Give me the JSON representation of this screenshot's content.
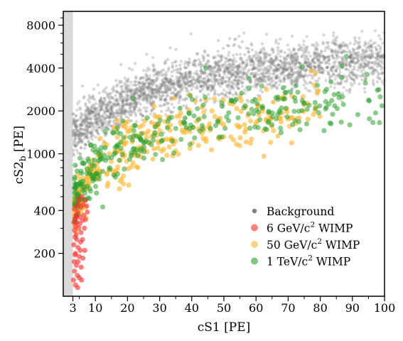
{
  "chart_data": {
    "type": "scatter",
    "title": "",
    "xlabel": "cS1 [PE]",
    "ylabel": "cS2",
    "ylabel_subscript": "b",
    "ylabel_unit": "[PE]",
    "x_scale": "linear",
    "y_scale": "log",
    "xlim": [
      0,
      100
    ],
    "ylim": [
      100,
      10000
    ],
    "x_ticks": [
      3,
      10,
      20,
      30,
      40,
      50,
      60,
      70,
      80,
      90,
      100
    ],
    "x_tick_labels": [
      "3",
      "10",
      "20",
      "30",
      "40",
      "50",
      "60",
      "70",
      "80",
      "90",
      "100"
    ],
    "y_ticks": [
      200,
      400,
      1000,
      2000,
      4000,
      8000
    ],
    "y_tick_labels": [
      "200",
      "400",
      "1000",
      "2000",
      "4000",
      "8000"
    ],
    "excluded_region": {
      "x_from": 0,
      "x_to": 3,
      "color": "#d9d9d9"
    },
    "legend_position": "lower-right",
    "series": [
      {
        "name": "Background",
        "color": "#7f7f7f",
        "band": {
          "x_from": 3,
          "x_to": 100,
          "n_points": 2600,
          "opacity": 0.3,
          "median": [
            [
              3,
              1350
            ],
            [
              10,
              1800
            ],
            [
              20,
              2400
            ],
            [
              30,
              2950
            ],
            [
              40,
              3350
            ],
            [
              50,
              3600
            ],
            [
              60,
              3900
            ],
            [
              70,
              4050
            ],
            [
              80,
              4250
            ],
            [
              90,
              4450
            ],
            [
              100,
              4700
            ]
          ]
        }
      },
      {
        "name": "6 GeV/c² WIMP",
        "color": "#ff2a2a",
        "points": [
          [
            3.2,
            130
          ],
          [
            3.5,
            150
          ],
          [
            3.4,
            175
          ],
          [
            3.8,
            200
          ],
          [
            4.1,
            165
          ],
          [
            4.4,
            140
          ],
          [
            3.3,
            230
          ],
          [
            3.7,
            260
          ],
          [
            4.2,
            250
          ],
          [
            4.6,
            220
          ],
          [
            5.0,
            190
          ],
          [
            5.3,
            210
          ],
          [
            3.5,
            290
          ],
          [
            3.9,
            310
          ],
          [
            4.3,
            330
          ],
          [
            4.8,
            300
          ],
          [
            5.5,
            280
          ],
          [
            3.6,
            350
          ],
          [
            4.0,
            370
          ],
          [
            4.5,
            390
          ],
          [
            5.2,
            360
          ],
          [
            5.9,
            340
          ],
          [
            6.4,
            370
          ],
          [
            3.4,
            410
          ],
          [
            4.1,
            430
          ],
          [
            4.7,
            450
          ],
          [
            5.5,
            420
          ],
          [
            6.2,
            440
          ],
          [
            4.9,
            480
          ],
          [
            5.8,
            500
          ],
          [
            6.8,
            470
          ],
          [
            7.3,
            430
          ],
          [
            5.0,
            135
          ],
          [
            5.6,
            160
          ],
          [
            6.1,
            185
          ],
          [
            6.7,
            210
          ],
          [
            3.8,
            120
          ],
          [
            4.5,
            115
          ],
          [
            6.0,
            250
          ],
          [
            6.6,
            300
          ],
          [
            4.0,
            270
          ],
          [
            5.1,
            320
          ],
          [
            3.7,
            195
          ],
          [
            5.4,
            240
          ],
          [
            3.3,
            330
          ],
          [
            7.5,
            390
          ],
          [
            6.9,
            345
          ],
          [
            4.6,
            175
          ],
          [
            5.7,
            130
          ],
          [
            4.2,
            360
          ]
        ]
      },
      {
        "name": "50 GeV/c² WIMP",
        "color": "#ffb833",
        "n_points": 320,
        "x_from": 3.5,
        "x_to": 80,
        "opacity": 0.65,
        "median": [
          [
            4,
            420
          ],
          [
            10,
            760
          ],
          [
            20,
            1100
          ],
          [
            30,
            1350
          ],
          [
            40,
            1550
          ],
          [
            50,
            1700
          ],
          [
            60,
            1850
          ],
          [
            70,
            1950
          ],
          [
            80,
            2050
          ]
        ]
      },
      {
        "name": "1 TeV/c² WIMP",
        "color": "#2ca02c",
        "n_points": 330,
        "x_from": 3.5,
        "x_to": 100,
        "opacity": 0.55,
        "median": [
          [
            4,
            500
          ],
          [
            10,
            820
          ],
          [
            20,
            1150
          ],
          [
            30,
            1450
          ],
          [
            40,
            1650
          ],
          [
            50,
            1850
          ],
          [
            60,
            2000
          ],
          [
            70,
            2100
          ],
          [
            80,
            2200
          ],
          [
            90,
            2300
          ],
          [
            100,
            2400
          ]
        ]
      }
    ],
    "legend": [
      {
        "label": "Background",
        "color": "#7f7f7f",
        "marker_size": 3.2
      },
      {
        "label_main": "6 GeV/c",
        "label_sup": "2",
        "label_tail": " WIMP",
        "color": "#ff2a2a",
        "marker_size": 5
      },
      {
        "label_main": "50 GeV/c",
        "label_sup": "2",
        "label_tail": " WIMP",
        "color": "#ffb833",
        "marker_size": 5
      },
      {
        "label_main": "1 TeV/c",
        "label_sup": "2",
        "label_tail": " WIMP",
        "color": "#2ca02c",
        "marker_size": 5
      }
    ]
  }
}
